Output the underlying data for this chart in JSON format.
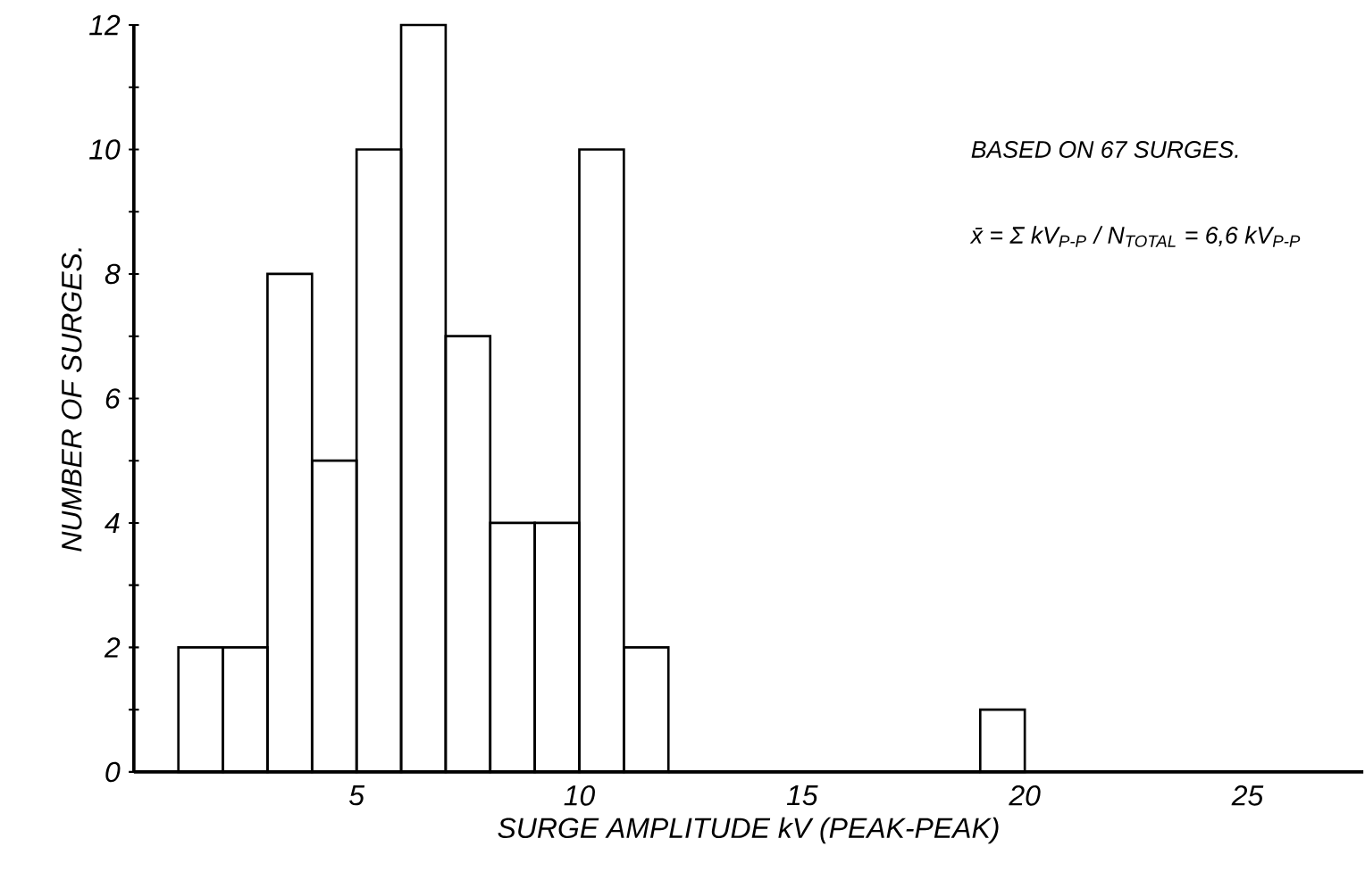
{
  "chart_data": {
    "type": "histogram",
    "xlabel": "SURGE AMPLITUDE kV (PEAK-PEAK)",
    "ylabel": "NUMBER OF SURGES.",
    "bins": [
      1,
      2,
      3,
      4,
      5,
      6,
      7,
      8,
      9,
      10,
      11,
      12,
      13,
      14,
      15,
      16,
      17,
      18,
      19,
      20
    ],
    "values": [
      2,
      2,
      8,
      5,
      10,
      12,
      7,
      4,
      4,
      10,
      2,
      0,
      0,
      0,
      0,
      0,
      0,
      0,
      1
    ],
    "color": "#000000",
    "xlim": [
      0,
      27.6
    ],
    "ylim": [
      0,
      12
    ],
    "xticks": [
      5,
      10,
      15,
      20,
      25
    ],
    "yticks": [
      0,
      {
        "value": 1,
        "label": null
      },
      2,
      {
        "value": 3,
        "label": null
      },
      4,
      {
        "value": 5,
        "label": null
      },
      6,
      {
        "value": 7,
        "label": null
      },
      8,
      {
        "value": 9,
        "label": null
      },
      10,
      {
        "value": 11,
        "label": null
      },
      12
    ],
    "annotations": [
      "BASED ON 67 SURGES.",
      "x̄ = Σ kV$_{P-P}$ / N$_{TOTAL}$ = 6,6 kV$_{P-P}$"
    ]
  }
}
